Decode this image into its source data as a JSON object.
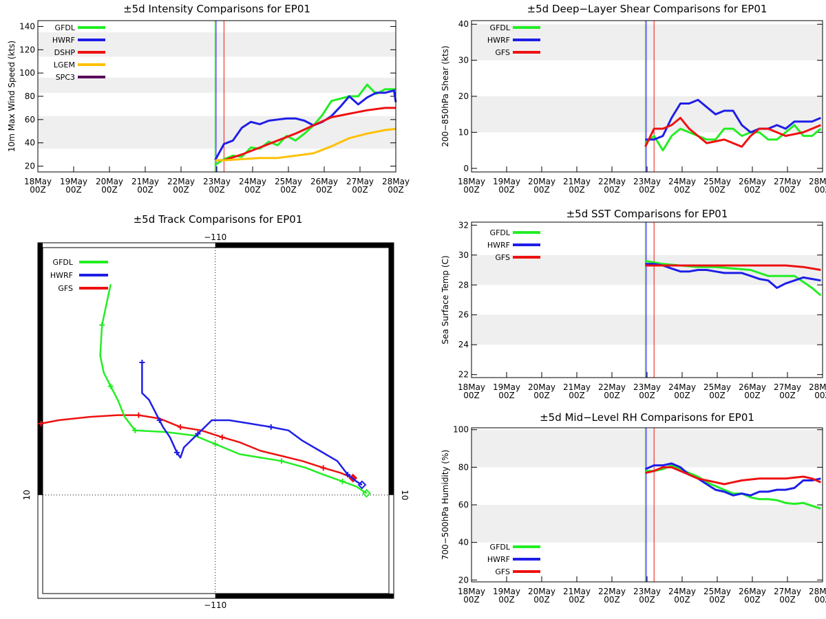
{
  "colors": {
    "GFDL": "#22ee22",
    "HWRF": "#1e1ee8",
    "DSHP": "#ee1111",
    "GFS": "#ee1111",
    "LGEM": "#ffc000",
    "SPC3": "#5a0a5a",
    "band": "#efefef",
    "axis": "#000000"
  },
  "time_ticks": [
    {
      "day": "18May",
      "hour": "00Z"
    },
    {
      "day": "19May",
      "hour": "00Z"
    },
    {
      "day": "20May",
      "hour": "00Z"
    },
    {
      "day": "21May",
      "hour": "00Z"
    },
    {
      "day": "22May",
      "hour": "00Z"
    },
    {
      "day": "23May",
      "hour": "00Z"
    },
    {
      "day": "24May",
      "hour": "00Z"
    },
    {
      "day": "25May",
      "hour": "00Z"
    },
    {
      "day": "26May",
      "hour": "00Z"
    },
    {
      "day": "27May",
      "hour": "00Z"
    },
    {
      "day": "28May",
      "hour": "00Z"
    }
  ],
  "chart_data": [
    {
      "id": "intensity",
      "type": "line",
      "title": "±5d Intensity Comparisons for EP01",
      "ylabel": "10m Max Wind Speed (kts)",
      "xlabel": "",
      "xlim": [
        0,
        10
      ],
      "ylim": [
        15,
        145
      ],
      "yticks": [
        20,
        40,
        60,
        80,
        100,
        120,
        140
      ],
      "bands": [
        [
          35,
          63
        ],
        [
          83,
          96
        ],
        [
          114,
          135
        ]
      ],
      "vlines": [
        {
          "x": 4.95,
          "color": "GFDL"
        },
        {
          "x": 4.98,
          "color": "HWRF"
        },
        {
          "x": 5.2,
          "color": "DSHP"
        }
      ],
      "legend": [
        "GFDL",
        "HWRF",
        "DSHP",
        "LGEM",
        "SPC3"
      ],
      "series": [
        {
          "name": "GFDL",
          "x": [
            4.95,
            5.2,
            5.45,
            5.7,
            5.95,
            6.2,
            6.45,
            6.7,
            6.95,
            7.2,
            7.45,
            7.7,
            7.95,
            8.2,
            8.45,
            8.7,
            8.95,
            9.2,
            9.45,
            9.7,
            9.95,
            10
          ],
          "y": [
            21,
            26,
            29,
            28,
            36,
            35,
            41,
            38,
            46,
            42,
            48,
            55,
            64,
            76,
            78,
            80,
            80,
            90,
            82,
            86,
            86,
            86
          ]
        },
        {
          "name": "HWRF",
          "x": [
            4.95,
            5.2,
            5.45,
            5.7,
            5.95,
            6.2,
            6.45,
            6.7,
            6.95,
            7.2,
            7.45,
            7.7,
            7.95,
            8.2,
            8.45,
            8.7,
            8.95,
            9.2,
            9.45,
            9.7,
            9.95,
            10
          ],
          "y": [
            25,
            39,
            42,
            53,
            58,
            56,
            59,
            60,
            61,
            61,
            59,
            55,
            58,
            63,
            71,
            80,
            73,
            79,
            83,
            83,
            85,
            75
          ]
        },
        {
          "name": "DSHP",
          "x": [
            4.95,
            5.2,
            5.7,
            6.2,
            6.7,
            7.2,
            7.7,
            8.2,
            8.7,
            9.2,
            9.7,
            10
          ],
          "y": [
            25,
            25,
            30,
            36,
            42,
            48,
            55,
            62,
            65,
            68,
            70,
            70
          ]
        },
        {
          "name": "LGEM",
          "x": [
            4.95,
            5.2,
            5.7,
            6.2,
            6.7,
            7.2,
            7.7,
            8.2,
            8.7,
            9.2,
            9.7,
            10
          ],
          "y": [
            25,
            25,
            26,
            27,
            27,
            29,
            31,
            37,
            44,
            48,
            51,
            52
          ]
        }
      ]
    },
    {
      "id": "shear",
      "type": "line",
      "title": "±5d Deep−Layer Shear Comparisons for EP01",
      "ylabel": "200−850hPa Shear (kts)",
      "xlabel": "",
      "xlim": [
        0,
        10
      ],
      "ylim": [
        -1,
        41
      ],
      "yticks": [
        0,
        10,
        20,
        30,
        40
      ],
      "bands": [
        [
          10,
          20
        ],
        [
          30,
          40
        ]
      ],
      "vlines": [
        {
          "x": 4.95,
          "color": "GFDL"
        },
        {
          "x": 4.98,
          "color": "HWRF"
        },
        {
          "x": 5.2,
          "color": "DSHP"
        }
      ],
      "legend": [
        "GFDL",
        "HWRF",
        "GFS"
      ],
      "series": [
        {
          "name": "GFDL",
          "x": [
            4.95,
            5.2,
            5.45,
            5.7,
            5.95,
            6.2,
            6.45,
            6.7,
            6.95,
            7.2,
            7.45,
            7.7,
            7.95,
            8.2,
            8.45,
            8.7,
            8.95,
            9.2,
            9.45,
            9.7,
            9.95
          ],
          "y": [
            7,
            9,
            5,
            9,
            11,
            10,
            9,
            8,
            8,
            11,
            11,
            9,
            10,
            10,
            8,
            8,
            10,
            12,
            9,
            9,
            11
          ]
        },
        {
          "name": "HWRF",
          "x": [
            4.95,
            5.2,
            5.45,
            5.7,
            5.95,
            6.2,
            6.45,
            6.7,
            6.95,
            7.2,
            7.45,
            7.7,
            7.95,
            8.2,
            8.45,
            8.7,
            8.95,
            9.2,
            9.45,
            9.7,
            9.95
          ],
          "y": [
            8,
            8,
            9,
            14,
            18,
            18,
            19,
            17,
            15,
            16,
            16,
            12,
            10,
            11,
            11,
            12,
            11,
            13,
            13,
            13,
            14
          ]
        },
        {
          "name": "GFS",
          "x": [
            4.95,
            5.2,
            5.45,
            5.7,
            5.95,
            6.2,
            6.45,
            6.7,
            6.95,
            7.2,
            7.45,
            7.7,
            7.95,
            8.2,
            8.45,
            8.7,
            8.95,
            9.2,
            9.45,
            9.7,
            9.95
          ],
          "y": [
            6,
            11,
            11,
            12,
            14,
            11,
            9,
            7,
            7.5,
            8,
            7,
            6,
            9,
            11,
            11,
            10,
            9,
            9.5,
            10,
            11,
            12
          ]
        }
      ]
    },
    {
      "id": "sst",
      "type": "line",
      "title": "±5d SST Comparisons for EP01",
      "ylabel": "Sea Surface Temp (C)",
      "xlabel": "",
      "xlim": [
        0,
        10
      ],
      "ylim": [
        21.8,
        32.2
      ],
      "yticks": [
        22,
        24,
        26,
        28,
        30,
        32
      ],
      "bands": [
        [
          24,
          26
        ],
        [
          28,
          30
        ]
      ],
      "vlines": [
        {
          "x": 4.95,
          "color": "GFDL"
        },
        {
          "x": 4.98,
          "color": "HWRF"
        },
        {
          "x": 5.2,
          "color": "DSHP"
        }
      ],
      "legend": [
        "GFDL",
        "HWRF",
        "GFS"
      ],
      "series": [
        {
          "name": "GFDL",
          "x": [
            4.95,
            5.45,
            5.95,
            6.45,
            6.95,
            7.45,
            7.95,
            8.45,
            8.95,
            9.2,
            9.45,
            9.7,
            9.95
          ],
          "y": [
            29.6,
            29.4,
            29.3,
            29.2,
            29.2,
            29.1,
            29.0,
            28.6,
            28.6,
            28.6,
            28.2,
            27.8,
            27.3
          ]
        },
        {
          "name": "HWRF",
          "x": [
            4.95,
            5.2,
            5.45,
            5.7,
            5.95,
            6.2,
            6.45,
            6.7,
            6.95,
            7.2,
            7.45,
            7.7,
            7.95,
            8.2,
            8.45,
            8.7,
            8.95,
            9.2,
            9.45,
            9.7,
            9.95
          ],
          "y": [
            29.4,
            29.4,
            29.3,
            29.1,
            28.9,
            28.9,
            29.0,
            29.0,
            28.9,
            28.8,
            28.8,
            28.8,
            28.6,
            28.4,
            28.3,
            27.8,
            28.1,
            28.3,
            28.5,
            28.4,
            28.3
          ]
        },
        {
          "name": "GFS",
          "x": [
            4.95,
            5.45,
            5.95,
            6.45,
            6.95,
            7.45,
            7.95,
            8.45,
            8.95,
            9.45,
            9.95
          ],
          "y": [
            29.3,
            29.3,
            29.3,
            29.3,
            29.3,
            29.3,
            29.3,
            29.3,
            29.3,
            29.2,
            29.0
          ]
        }
      ]
    },
    {
      "id": "rh",
      "type": "line",
      "title": "±5d Mid−Level RH Comparisons for EP01",
      "ylabel": "700−500hPa Humidity (%)",
      "xlabel": "",
      "xlim": [
        0,
        10
      ],
      "ylim": [
        19,
        101
      ],
      "yticks": [
        20,
        40,
        60,
        80,
        100
      ],
      "bands": [
        [
          40,
          60
        ],
        [
          80,
          100
        ]
      ],
      "vlines": [
        {
          "x": 4.95,
          "color": "GFDL"
        },
        {
          "x": 4.98,
          "color": "HWRF"
        },
        {
          "x": 5.2,
          "color": "DSHP"
        }
      ],
      "legend": [
        "GFDL",
        "HWRF",
        "GFS"
      ],
      "legend_position": "bottom-left",
      "series": [
        {
          "name": "GFDL",
          "x": [
            4.95,
            5.2,
            5.45,
            5.7,
            5.95,
            6.2,
            6.45,
            6.7,
            6.95,
            7.2,
            7.45,
            7.7,
            7.95,
            8.2,
            8.45,
            8.7,
            8.95,
            9.2,
            9.45,
            9.7,
            9.95
          ],
          "y": [
            78,
            78,
            79,
            81,
            79,
            77,
            75,
            72,
            70,
            68,
            66,
            66,
            64,
            63,
            63,
            62.5,
            61,
            60.5,
            61,
            59.5,
            58
          ]
        },
        {
          "name": "HWRF",
          "x": [
            4.95,
            5.2,
            5.45,
            5.7,
            5.95,
            6.2,
            6.45,
            6.7,
            6.95,
            7.2,
            7.45,
            7.7,
            7.95,
            8.2,
            8.45,
            8.7,
            8.95,
            9.2,
            9.45,
            9.7,
            9.95
          ],
          "y": [
            79,
            81,
            81,
            82,
            80,
            76,
            74,
            71,
            68,
            67,
            65,
            66,
            65,
            67,
            67,
            68,
            68,
            69,
            73,
            73,
            74
          ]
        },
        {
          "name": "GFS",
          "x": [
            4.95,
            5.2,
            5.45,
            5.7,
            5.95,
            6.2,
            6.45,
            6.7,
            6.95,
            7.2,
            7.45,
            7.7,
            7.95,
            8.2,
            8.45,
            8.7,
            8.95,
            9.2,
            9.45,
            9.7,
            9.95
          ],
          "y": [
            77,
            78,
            80,
            80,
            78,
            76,
            74,
            73,
            72,
            71,
            72,
            73,
            73.5,
            74,
            74,
            74,
            74,
            74.5,
            75,
            74,
            72
          ]
        }
      ]
    },
    {
      "id": "track",
      "type": "scatter",
      "title": "±5d Track Comparisons for EP01",
      "top_label": "−110",
      "bottom_label": "−110",
      "left_label": "10",
      "right_label": "10",
      "grid_lon": -110,
      "grid_lat": 10,
      "lon_range": [
        -115.09,
        -104.88
      ],
      "lat_range": [
        6.96,
        17.42
      ],
      "legend": [
        "GFDL",
        "HWRF",
        "GFS"
      ],
      "series": [
        {
          "name": "GFDL",
          "lon": [
            -105.66,
            -105.95,
            -106.35,
            -106.9,
            -107.4,
            -108.1,
            -108.7,
            -109.3,
            -110.0,
            -110.6,
            -111.4,
            -112.3,
            -112.6,
            -112.8,
            -113.0,
            -113.2,
            -113.3,
            -113.25,
            -113.0
          ],
          "lat": [
            10.05,
            10.25,
            10.4,
            10.6,
            10.8,
            11.0,
            11.1,
            11.2,
            11.5,
            11.75,
            11.85,
            11.9,
            12.3,
            12.8,
            13.2,
            13.6,
            14.1,
            15.0,
            16.2
          ],
          "markers": [
            2,
            5,
            8,
            11,
            14,
            17
          ]
        },
        {
          "name": "HWRF",
          "lon": [
            -105.79,
            -105.95,
            -106.2,
            -106.5,
            -107.0,
            -107.5,
            -107.9,
            -108.4,
            -109.0,
            -109.6,
            -110.1,
            -110.5,
            -110.9,
            -111.0,
            -111.1,
            -111.3,
            -111.5,
            -111.6,
            -111.9,
            -112.1,
            -112.1
          ],
          "lat": [
            10.3,
            10.4,
            10.6,
            11.0,
            11.3,
            11.6,
            11.9,
            12.0,
            12.1,
            12.2,
            12.2,
            11.8,
            11.4,
            11.1,
            11.25,
            11.7,
            12.0,
            12.2,
            12.8,
            13.0,
            13.9
          ],
          "markers": [
            2,
            7,
            11,
            14,
            17,
            20
          ]
        },
        {
          "name": "GFS",
          "lon": [
            -106.05,
            -106.4,
            -106.9,
            -107.5,
            -108.1,
            -108.7,
            -109.3,
            -109.8,
            -110.4,
            -111.0,
            -111.6,
            -112.2,
            -112.8,
            -113.6,
            -114.5,
            -115.0
          ],
          "lat": [
            10.5,
            10.65,
            10.8,
            11.0,
            11.15,
            11.3,
            11.55,
            11.7,
            11.9,
            12.0,
            12.25,
            12.35,
            12.35,
            12.3,
            12.2,
            12.1
          ],
          "markers": [
            2,
            7,
            9,
            11,
            15
          ]
        }
      ]
    }
  ]
}
